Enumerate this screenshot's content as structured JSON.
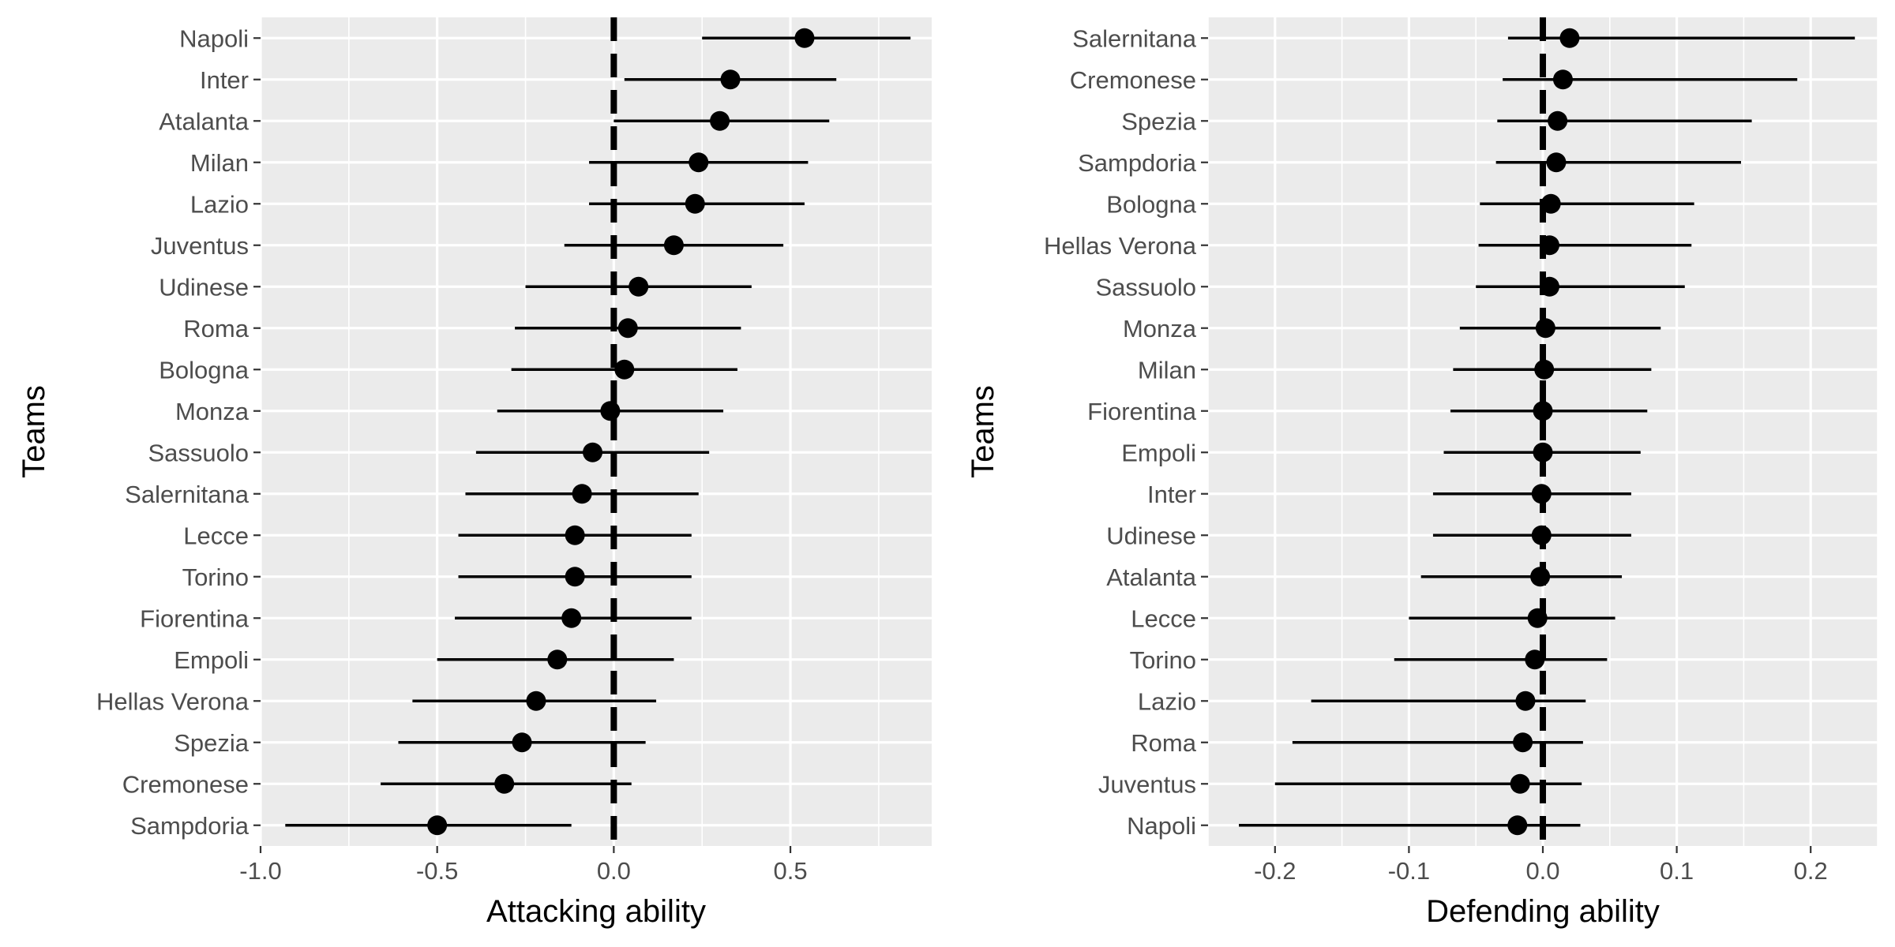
{
  "chart_data": [
    {
      "type": "scatter",
      "subtype": "dot-and-interval",
      "xlabel": "Attacking ability",
      "ylabel": "Teams",
      "xlim": [
        -1.0,
        0.9
      ],
      "x_ticks": [
        -1.0,
        -0.5,
        0.0,
        0.5
      ],
      "x_tick_labels": [
        "-1.0",
        "-0.5",
        "0.0",
        "0.5"
      ],
      "reference_line": 0.0,
      "grid": true,
      "teams": [
        "Napoli",
        "Inter",
        "Atalanta",
        "Milan",
        "Lazio",
        "Juventus",
        "Udinese",
        "Roma",
        "Bologna",
        "Monza",
        "Sassuolo",
        "Salernitana",
        "Lecce",
        "Torino",
        "Fiorentina",
        "Empoli",
        "Hellas Verona",
        "Spezia",
        "Cremonese",
        "Sampdoria"
      ],
      "estimate": [
        0.54,
        0.33,
        0.3,
        0.24,
        0.23,
        0.17,
        0.07,
        0.04,
        0.03,
        -0.01,
        -0.06,
        -0.09,
        -0.11,
        -0.11,
        -0.12,
        -0.16,
        -0.22,
        -0.26,
        -0.31,
        -0.5
      ],
      "lower": [
        0.25,
        0.03,
        0.0,
        -0.07,
        -0.07,
        -0.14,
        -0.25,
        -0.28,
        -0.29,
        -0.33,
        -0.39,
        -0.42,
        -0.44,
        -0.44,
        -0.45,
        -0.5,
        -0.57,
        -0.61,
        -0.66,
        -0.93
      ],
      "upper": [
        0.84,
        0.63,
        0.61,
        0.55,
        0.54,
        0.48,
        0.39,
        0.36,
        0.35,
        0.31,
        0.27,
        0.24,
        0.22,
        0.22,
        0.22,
        0.17,
        0.12,
        0.09,
        0.05,
        -0.12
      ]
    },
    {
      "type": "scatter",
      "subtype": "dot-and-interval",
      "xlabel": "Defending ability",
      "ylabel": "Teams",
      "xlim": [
        -0.25,
        0.25
      ],
      "x_ticks": [
        -0.2,
        -0.1,
        0.0,
        0.1,
        0.2
      ],
      "x_tick_labels": [
        "-0.2",
        "-0.1",
        "0.0",
        "0.1",
        "0.2"
      ],
      "reference_line": 0.0,
      "grid": true,
      "teams": [
        "Salernitana",
        "Cremonese",
        "Spezia",
        "Sampdoria",
        "Bologna",
        "Hellas Verona",
        "Sassuolo",
        "Monza",
        "Milan",
        "Fiorentina",
        "Empoli",
        "Inter",
        "Udinese",
        "Atalanta",
        "Lecce",
        "Torino",
        "Lazio",
        "Roma",
        "Juventus",
        "Napoli"
      ],
      "estimate": [
        0.02,
        0.015,
        0.011,
        0.01,
        0.006,
        0.005,
        0.005,
        0.002,
        0.001,
        0.0,
        0.0,
        -0.001,
        -0.001,
        -0.002,
        -0.004,
        -0.006,
        -0.013,
        -0.015,
        -0.017,
        -0.019
      ],
      "lower": [
        -0.026,
        -0.03,
        -0.034,
        -0.035,
        -0.047,
        -0.048,
        -0.05,
        -0.062,
        -0.067,
        -0.069,
        -0.074,
        -0.082,
        -0.082,
        -0.091,
        -0.1,
        -0.111,
        -0.173,
        -0.187,
        -0.2,
        -0.227
      ],
      "upper": [
        0.233,
        0.19,
        0.156,
        0.148,
        0.113,
        0.111,
        0.106,
        0.088,
        0.081,
        0.078,
        0.073,
        0.066,
        0.066,
        0.059,
        0.054,
        0.048,
        0.032,
        0.03,
        0.029,
        0.028
      ]
    }
  ]
}
